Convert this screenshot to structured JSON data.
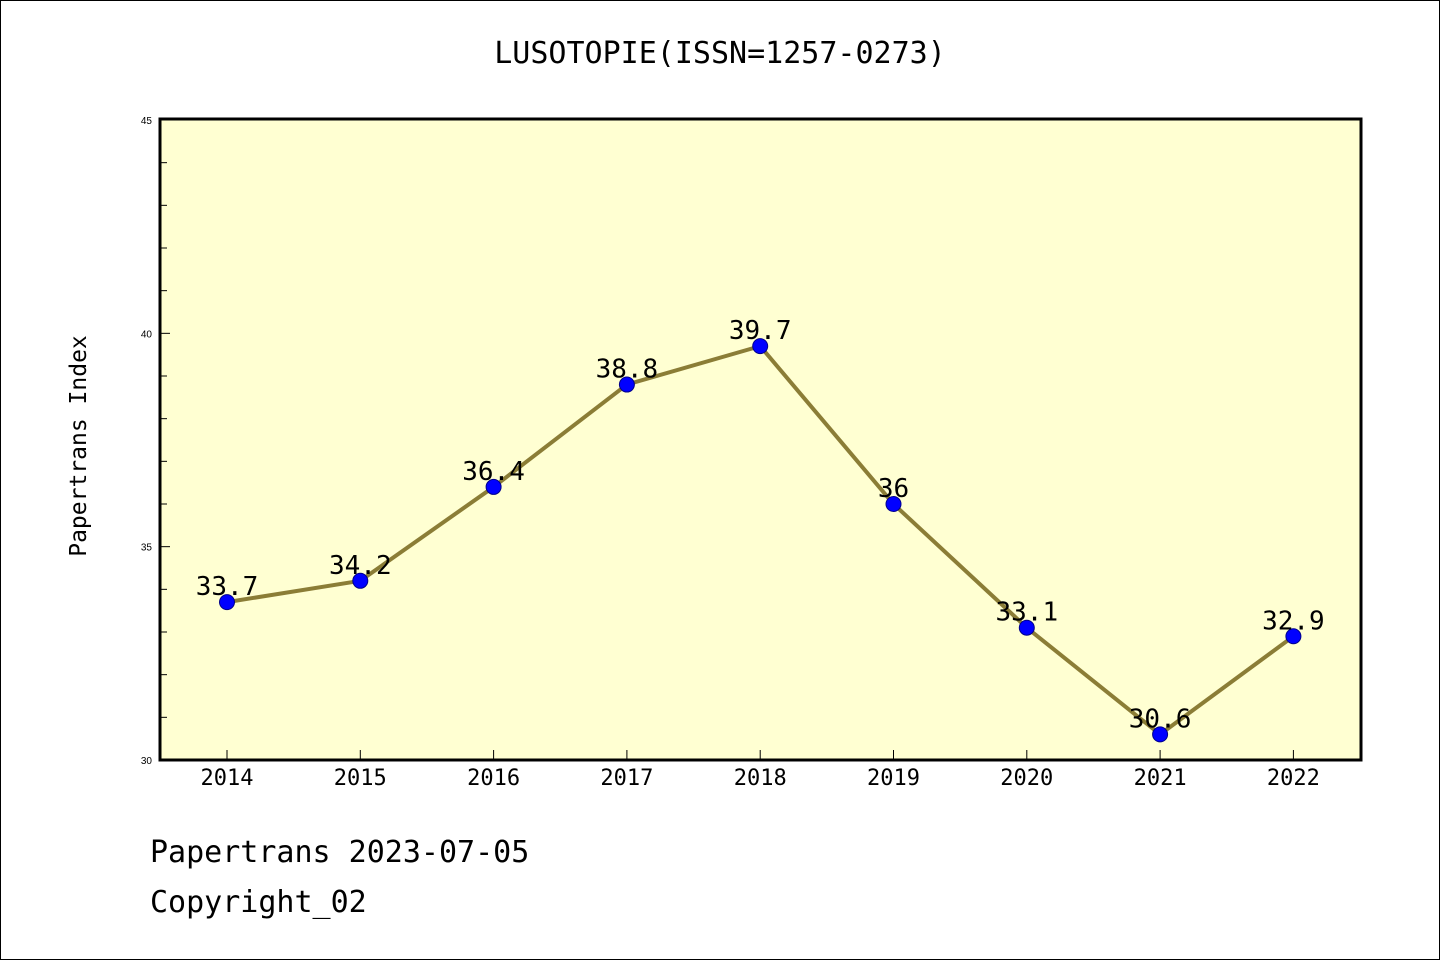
{
  "chart_data": {
    "type": "line",
    "title": "LUSOTOPIE(ISSN=1257-0273)",
    "xlabel": "",
    "ylabel": "Papertrans Index",
    "categories": [
      "2014",
      "2015",
      "2016",
      "2017",
      "2018",
      "2019",
      "2020",
      "2021",
      "2022"
    ],
    "values": [
      33.7,
      34.2,
      36.4,
      38.8,
      39.7,
      36,
      33.1,
      30.6,
      32.9
    ],
    "data_labels": [
      "33.7",
      "34.2",
      "36.4",
      "38.8",
      "39.7",
      "36",
      "33.1",
      "30.6",
      "32.9"
    ],
    "ylim": [
      30,
      45
    ],
    "yticks": [
      "30",
      "35",
      "40",
      "45"
    ],
    "grid": false,
    "legend": "none",
    "colors": {
      "plot_background": "#ffffd2",
      "line": "#8b7d36",
      "marker": "#0000ff"
    }
  },
  "footer": {
    "line1": "Papertrans 2023-07-05",
    "line2": "Copyright_02"
  }
}
